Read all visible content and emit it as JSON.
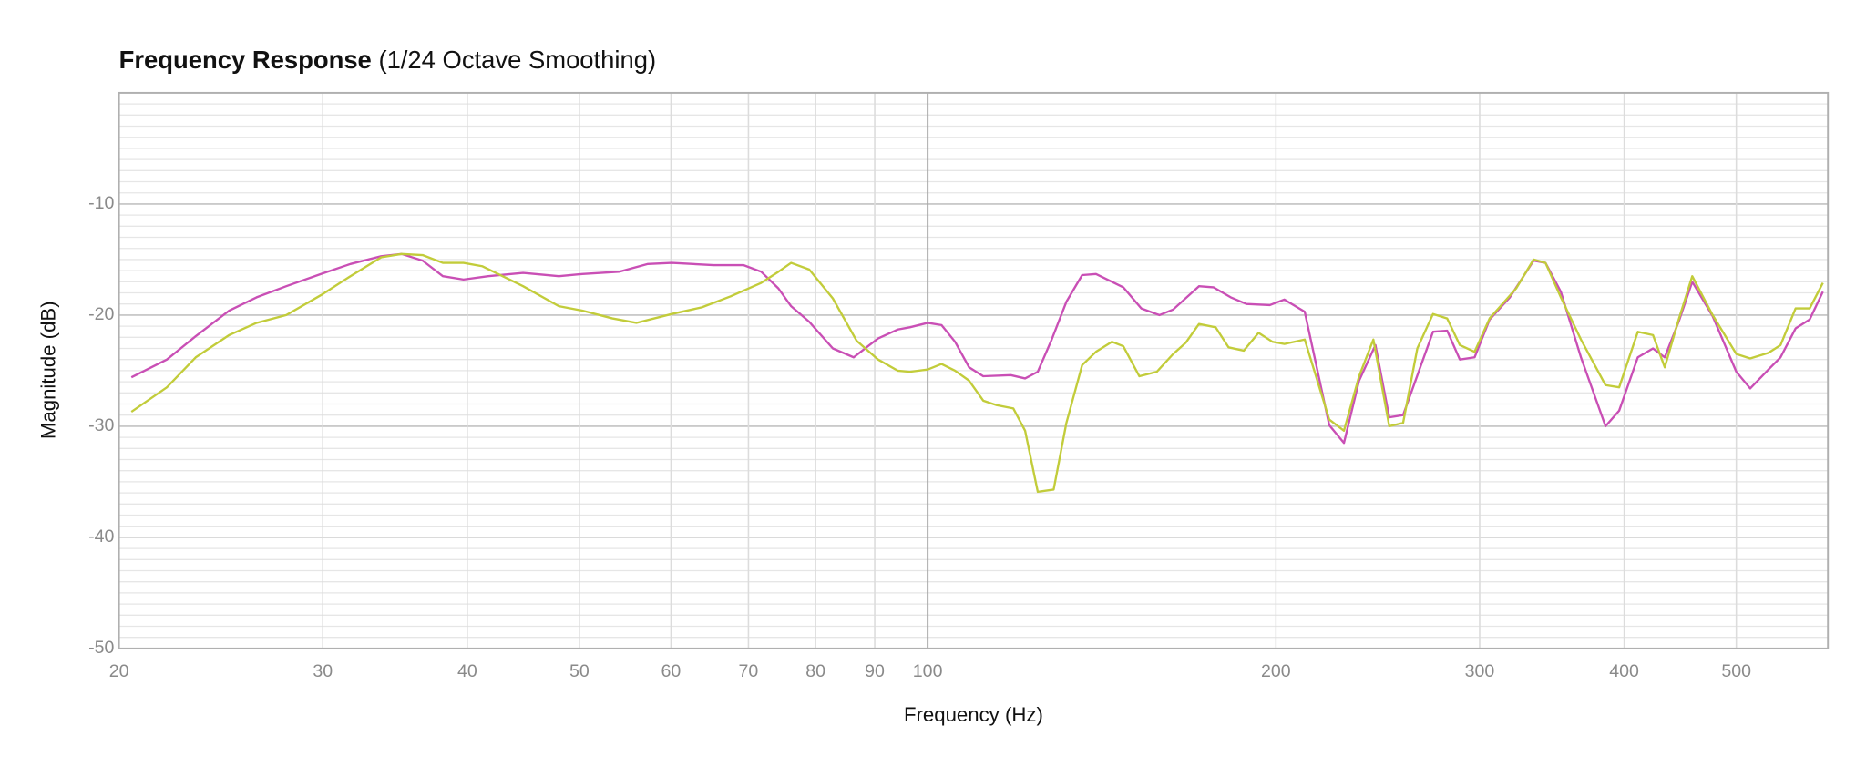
{
  "chart_data": {
    "type": "line",
    "title": "Frequency Response",
    "subtitle": "(1/24 Octave Smoothing)",
    "x_label": "Frequency (Hz)",
    "y_label": "Magnitude (dB)",
    "xscale": "log",
    "xlim": [
      20,
      600
    ],
    "ylim": [
      -50,
      0
    ],
    "xticks": [
      20,
      30,
      40,
      50,
      60,
      70,
      80,
      90,
      100,
      200,
      300,
      400,
      500
    ],
    "yticks": [
      -50,
      -40,
      -30,
      -20,
      -10
    ],
    "grid": true,
    "series": [
      {
        "color": "#c94fb5",
        "x": [
          20.5,
          22.0,
          23.3,
          24.9,
          26.3,
          27.9,
          29.9,
          31.7,
          33.7,
          35.1,
          36.6,
          38.1,
          39.7,
          41.7,
          44.7,
          48.0,
          50.3,
          54.1,
          57.3,
          60.1,
          65.3,
          69.3,
          71.8,
          74.3,
          76.2,
          79.0,
          82.8,
          86.3,
          90.6,
          94.2,
          96.5,
          100,
          102.8,
          105.6,
          108.6,
          111.7,
          118,
          121.4,
          124.5,
          128,
          131.8,
          136,
          139.8,
          147.6,
          153,
          158.6,
          163,
          171.6,
          176.6,
          182.8,
          188.6,
          197.6,
          203.4,
          211.8,
          222.4,
          229,
          236,
          243.8,
          250.6,
          257.6,
          273.4,
          281.2,
          288.4,
          297,
          306,
          318.6,
          334,
          342,
          352.6,
          367,
          385.4,
          396,
          411,
          423.6,
          433.6,
          445.8,
          458,
          477,
          500,
          514,
          533,
          546,
          562.6,
          578.6,
          594
        ],
        "values": [
          -25.6,
          -24.0,
          -21.9,
          -19.6,
          -18.4,
          -17.4,
          -16.3,
          -15.4,
          -14.7,
          -14.5,
          -15.1,
          -16.5,
          -16.8,
          -16.5,
          -16.2,
          -16.5,
          -16.3,
          -16.1,
          -15.4,
          -15.3,
          -15.5,
          -15.5,
          -16.1,
          -17.6,
          -19.2,
          -20.6,
          -23.0,
          -23.8,
          -22.1,
          -21.3,
          -21.1,
          -20.7,
          -20.9,
          -22.4,
          -24.7,
          -25.5,
          -25.4,
          -25.7,
          -25.1,
          -22.2,
          -18.8,
          -16.4,
          -16.3,
          -17.5,
          -19.4,
          -20.0,
          -19.5,
          -17.4,
          -17.5,
          -18.4,
          -19.0,
          -19.1,
          -18.6,
          -19.7,
          -29.9,
          -31.5,
          -25.9,
          -22.7,
          -29.2,
          -29.0,
          -21.5,
          -21.4,
          -24.0,
          -23.8,
          -20.4,
          -18.4,
          -15.1,
          -15.3,
          -17.9,
          -23.8,
          -30.0,
          -28.6,
          -23.8,
          -23.0,
          -23.8,
          -20.6,
          -17.0,
          -20.1,
          -25.1,
          -26.6,
          -24.9,
          -23.8,
          -21.2,
          -20.4,
          -17.9
        ]
      },
      {
        "color": "#c2cc3a",
        "x": [
          20.5,
          22.0,
          23.3,
          24.9,
          26.3,
          27.9,
          29.9,
          31.7,
          33.7,
          35.1,
          36.6,
          38.1,
          39.7,
          41.2,
          44.7,
          48.0,
          50.3,
          53.4,
          56.0,
          60.1,
          63.8,
          67.6,
          71.8,
          74.3,
          76.2,
          79.0,
          82.8,
          86.8,
          90.6,
          94.2,
          96.5,
          100,
          102.8,
          105.6,
          108.6,
          111.7,
          114.7,
          118.6,
          121.4,
          124.5,
          128.5,
          131.8,
          136,
          139.8,
          144.3,
          147.6,
          152.4,
          157.8,
          163,
          167.1,
          171.6,
          177.4,
          182.0,
          187.6,
          193.2,
          198.6,
          203.4,
          211.8,
          222.4,
          229,
          236,
          242.8,
          250.6,
          257.6,
          265,
          273.4,
          281.2,
          288.4,
          297,
          306,
          322.6,
          334,
          342,
          352.6,
          367,
          385.4,
          396,
          411,
          423.6,
          433.6,
          445.8,
          458,
          477,
          500,
          514,
          533,
          546,
          562.6,
          578.6,
          594
        ],
        "values": [
          -28.7,
          -26.5,
          -23.8,
          -21.8,
          -20.7,
          -20.0,
          -18.2,
          -16.5,
          -14.8,
          -14.5,
          -14.6,
          -15.3,
          -15.3,
          -15.6,
          -17.4,
          -19.2,
          -19.6,
          -20.3,
          -20.7,
          -19.9,
          -19.3,
          -18.3,
          -17.1,
          -16.1,
          -15.3,
          -15.9,
          -18.5,
          -22.3,
          -24.0,
          -25.0,
          -25.1,
          -24.9,
          -24.4,
          -25.0,
          -25.9,
          -27.7,
          -28.1,
          -28.4,
          -30.4,
          -35.9,
          -35.7,
          -29.7,
          -24.5,
          -23.3,
          -22.4,
          -22.8,
          -25.5,
          -25.1,
          -23.5,
          -22.5,
          -20.8,
          -21.1,
          -22.9,
          -23.2,
          -21.6,
          -22.4,
          -22.6,
          -22.2,
          -29.4,
          -30.4,
          -25.5,
          -22.2,
          -30.0,
          -29.7,
          -23.0,
          -19.9,
          -20.3,
          -22.7,
          -23.3,
          -20.3,
          -17.6,
          -15.0,
          -15.3,
          -18.4,
          -22.2,
          -26.3,
          -26.5,
          -21.5,
          -21.8,
          -24.7,
          -20.4,
          -16.5,
          -20.0,
          -23.5,
          -23.9,
          -23.4,
          -22.7,
          -19.4,
          -19.4,
          -17.1
        ]
      }
    ]
  }
}
